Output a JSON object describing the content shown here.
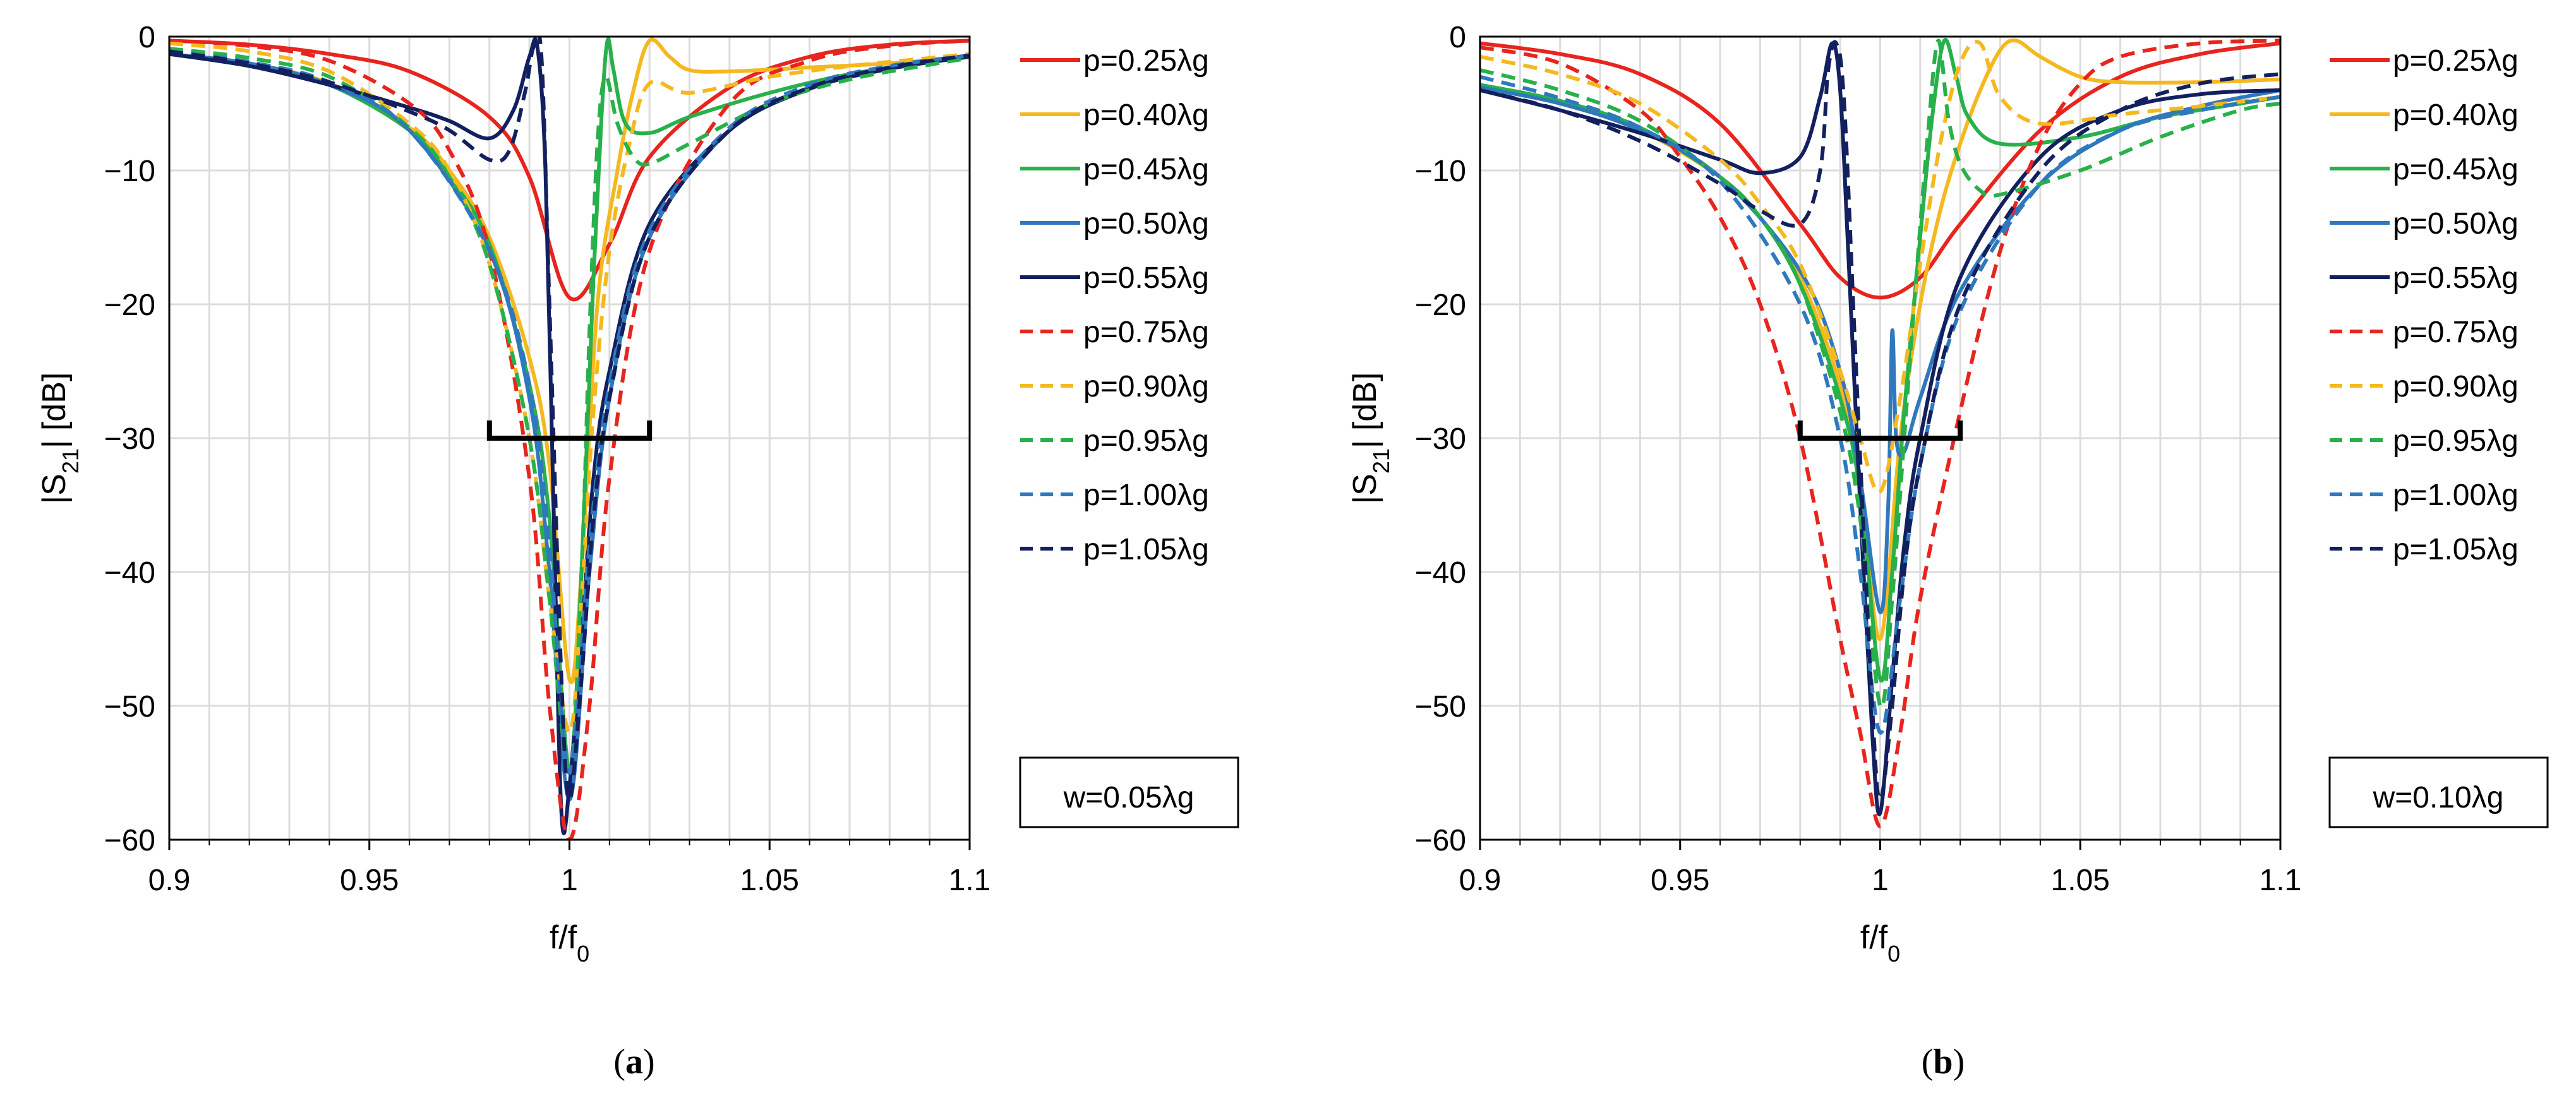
{
  "chart_data": [
    {
      "type": "line",
      "panel": "a",
      "caption_letter": "a",
      "xlabel": "f/f0",
      "ylabel": "|S21| [dB]",
      "xlim": [
        0.9,
        1.1
      ],
      "ylim": [
        -60,
        0
      ],
      "xticks": [
        0.9,
        0.95,
        1,
        1.05,
        1.1
      ],
      "xtick_labels": [
        "0.9",
        "0.95",
        "1",
        "1.05",
        "1.1"
      ],
      "yticks": [
        0,
        -10,
        -20,
        -30,
        -40,
        -50,
        -60
      ],
      "ytick_labels": [
        "0",
        "−10",
        "−20",
        "−30",
        "−40",
        "−50",
        "−60"
      ],
      "grid": true,
      "legend_position": "right",
      "annotation": "w=0.05λg",
      "bracket": {
        "x": [
          0.98,
          1.02
        ],
        "y": -30
      },
      "series": [
        {
          "name": "p=0.25λg",
          "color": "#e8241e",
          "style": "solid",
          "x": [
            0.9,
            0.92,
            0.94,
            0.96,
            0.98,
            0.99,
            1.0,
            1.01,
            1.02,
            1.04,
            1.06,
            1.08,
            1.1
          ],
          "y": [
            -0.3,
            -0.6,
            -1.3,
            -2.6,
            -6.0,
            -10.5,
            -19.5,
            -15.5,
            -9.0,
            -3.8,
            -1.5,
            -0.6,
            -0.3
          ]
        },
        {
          "name": "p=0.40λg",
          "color": "#f5b81e",
          "style": "solid",
          "x": [
            0.9,
            0.92,
            0.94,
            0.96,
            0.97,
            0.98,
            0.99,
            0.995,
            1.0,
            1.003,
            1.007,
            1.012,
            1.016,
            1.02,
            1.025,
            1.03,
            1.04,
            1.06,
            1.08,
            1.1
          ],
          "y": [
            -1.3,
            -2.0,
            -3.5,
            -6.8,
            -10.0,
            -15.0,
            -24.0,
            -32.0,
            -48.0,
            -40.0,
            -20.0,
            -10.0,
            -4.0,
            -0.3,
            -1.5,
            -2.5,
            -2.6,
            -2.3,
            -2.0,
            -1.5
          ]
        },
        {
          "name": "p=0.45λg",
          "color": "#28b04b",
          "style": "solid",
          "x": [
            0.9,
            0.92,
            0.94,
            0.96,
            0.97,
            0.98,
            0.99,
            0.995,
            1.0,
            1.003,
            1.006,
            1.008,
            1.0095,
            1.011,
            1.014,
            1.02,
            1.03,
            1.05,
            1.07,
            1.09,
            1.1
          ],
          "y": [
            -1.3,
            -2.1,
            -3.6,
            -7.0,
            -10.5,
            -15.5,
            -26.0,
            -36.0,
            -55.0,
            -40.0,
            -18.0,
            -6.0,
            -0.3,
            -2.5,
            -6.5,
            -7.2,
            -6.0,
            -4.2,
            -2.8,
            -1.9,
            -1.5
          ]
        },
        {
          "name": "p=0.50λg",
          "color": "#2f78bd",
          "style": "solid",
          "x": [
            0.9,
            0.92,
            0.94,
            0.96,
            0.98,
            0.99,
            0.995,
            1.0,
            1.005,
            1.01,
            1.02,
            1.04,
            1.06,
            1.08,
            1.1
          ],
          "y": [
            -1.3,
            -2.0,
            -3.6,
            -7.0,
            -16.0,
            -27.0,
            -40.0,
            -57.0,
            -40.0,
            -27.0,
            -15.0,
            -7.0,
            -3.8,
            -2.3,
            -1.5
          ]
        },
        {
          "name": "p=0.55λg",
          "color": "#13205f",
          "style": "solid",
          "x": [
            0.9,
            0.92,
            0.94,
            0.96,
            0.97,
            0.98,
            0.986,
            0.99,
            0.992,
            0.994,
            0.996,
            0.998,
            1.0,
            1.003,
            1.006,
            1.01,
            1.02,
            1.04,
            1.06,
            1.08,
            1.1
          ],
          "y": [
            -1.3,
            -2.2,
            -3.6,
            -5.3,
            -6.3,
            -7.6,
            -5.5,
            -1.5,
            -0.8,
            -10.0,
            -35.0,
            -58.0,
            -56.0,
            -45.0,
            -33.0,
            -25.0,
            -14.0,
            -7.0,
            -3.9,
            -2.4,
            -1.5
          ]
        },
        {
          "name": "p=0.75λg",
          "color": "#e8241e",
          "style": "dashed",
          "x": [
            0.9,
            0.92,
            0.94,
            0.96,
            0.97,
            0.98,
            0.99,
            0.995,
            1.0,
            1.005,
            1.01,
            1.02,
            1.04,
            1.06,
            1.08,
            1.1
          ],
          "y": [
            -0.3,
            -0.7,
            -1.8,
            -5.0,
            -8.5,
            -16.0,
            -33.0,
            -50.0,
            -60.0,
            -50.0,
            -33.0,
            -16.0,
            -5.0,
            -1.8,
            -0.7,
            -0.3
          ]
        },
        {
          "name": "p=0.90λg",
          "color": "#f5b81e",
          "style": "dashed",
          "x": [
            0.9,
            0.92,
            0.94,
            0.96,
            0.97,
            0.98,
            0.99,
            0.995,
            1.0,
            1.003,
            1.006,
            1.01,
            1.015,
            1.02,
            1.03,
            1.05,
            1.07,
            1.09,
            1.1
          ],
          "y": [
            -0.5,
            -1.1,
            -2.6,
            -6.5,
            -10.0,
            -17.0,
            -30.0,
            -42.0,
            -52.0,
            -42.0,
            -28.0,
            -16.0,
            -8.0,
            -3.5,
            -4.2,
            -3.0,
            -2.2,
            -1.6,
            -1.3
          ]
        },
        {
          "name": "p=0.95λg",
          "color": "#28b04b",
          "style": "dashed",
          "x": [
            0.9,
            0.92,
            0.94,
            0.96,
            0.97,
            0.98,
            0.99,
            0.995,
            1.0,
            1.003,
            1.005,
            1.007,
            1.009,
            1.012,
            1.016,
            1.02,
            1.03,
            1.05,
            1.07,
            1.09,
            1.1
          ],
          "y": [
            -0.9,
            -1.6,
            -3.0,
            -6.8,
            -10.5,
            -17.0,
            -30.0,
            -42.0,
            -55.0,
            -40.0,
            -22.0,
            -8.0,
            -3.0,
            -6.5,
            -9.0,
            -9.5,
            -8.0,
            -5.0,
            -3.2,
            -2.1,
            -1.6
          ]
        },
        {
          "name": "p=1.00λg",
          "color": "#2f78bd",
          "style": "dashed",
          "x": [
            0.9,
            0.92,
            0.94,
            0.96,
            0.98,
            0.99,
            0.995,
            1.0,
            1.005,
            1.01,
            1.02,
            1.04,
            1.06,
            1.08,
            1.1
          ],
          "y": [
            -1.1,
            -1.9,
            -3.4,
            -7.0,
            -16.0,
            -26.0,
            -38.0,
            -55.0,
            -38.0,
            -26.0,
            -14.5,
            -6.8,
            -3.6,
            -2.2,
            -1.4
          ]
        },
        {
          "name": "p=1.05λg",
          "color": "#13205f",
          "style": "dashed",
          "x": [
            0.9,
            0.92,
            0.94,
            0.96,
            0.97,
            0.98,
            0.985,
            0.989,
            0.991,
            0.993,
            0.995,
            0.998,
            1.0,
            1.003,
            1.006,
            1.01,
            1.02,
            1.04,
            1.06,
            1.08,
            1.1
          ],
          "y": [
            -1.1,
            -2.0,
            -3.4,
            -5.6,
            -7.0,
            -9.2,
            -8.5,
            -4.0,
            -0.8,
            -1.5,
            -20.0,
            -48.0,
            -57.0,
            -48.0,
            -36.0,
            -27.0,
            -15.0,
            -7.0,
            -3.8,
            -2.3,
            -1.4
          ]
        }
      ]
    },
    {
      "type": "line",
      "panel": "b",
      "caption_letter": "b",
      "xlabel": "f/f0",
      "ylabel": "|S21| [dB]",
      "xlim": [
        0.9,
        1.1
      ],
      "ylim": [
        -60,
        0
      ],
      "xticks": [
        0.9,
        0.95,
        1,
        1.05,
        1.1
      ],
      "xtick_labels": [
        "0.9",
        "0.95",
        "1",
        "1.05",
        "1.1"
      ],
      "yticks": [
        0,
        -10,
        -20,
        -30,
        -40,
        -50,
        -60
      ],
      "ytick_labels": [
        "0",
        "−10",
        "−20",
        "−30",
        "−40",
        "−50",
        "−60"
      ],
      "grid": true,
      "legend_position": "right",
      "annotation": "w=0.10λg",
      "bracket": {
        "x": [
          0.98,
          1.02
        ],
        "y": -30
      },
      "series": [
        {
          "name": "p=0.25λg",
          "color": "#e8241e",
          "style": "solid",
          "x": [
            0.9,
            0.92,
            0.94,
            0.96,
            0.98,
            0.99,
            1.0,
            1.01,
            1.02,
            1.04,
            1.06,
            1.08,
            1.1
          ],
          "y": [
            -0.5,
            -1.3,
            -2.8,
            -6.5,
            -14.0,
            -18.0,
            -19.5,
            -18.0,
            -14.0,
            -7.0,
            -3.0,
            -1.3,
            -0.5
          ]
        },
        {
          "name": "p=0.40λg",
          "color": "#f5b81e",
          "style": "solid",
          "x": [
            0.9,
            0.92,
            0.94,
            0.96,
            0.97,
            0.98,
            0.99,
            0.995,
            1.0,
            1.005,
            1.01,
            1.015,
            1.02,
            1.025,
            1.03,
            1.034,
            1.04,
            1.05,
            1.06,
            1.08,
            1.1
          ],
          "y": [
            -3.8,
            -5.0,
            -7.0,
            -10.5,
            -13.5,
            -18.0,
            -26.0,
            -33.0,
            -45.0,
            -30.0,
            -20.0,
            -13.0,
            -8.0,
            -4.0,
            -1.0,
            -0.3,
            -1.5,
            -3.0,
            -3.4,
            -3.4,
            -3.2
          ]
        },
        {
          "name": "p=0.45λg",
          "color": "#28b04b",
          "style": "solid",
          "x": [
            0.9,
            0.92,
            0.94,
            0.96,
            0.97,
            0.98,
            0.99,
            0.995,
            1.0,
            1.003,
            1.006,
            1.01,
            1.013,
            1.016,
            1.019,
            1.022,
            1.03,
            1.05,
            1.07,
            1.09,
            1.1
          ],
          "y": [
            -3.6,
            -4.8,
            -6.8,
            -10.5,
            -13.5,
            -18.5,
            -27.0,
            -34.0,
            -48.0,
            -40.0,
            -28.0,
            -15.0,
            -6.0,
            -0.3,
            -3.0,
            -6.0,
            -8.0,
            -7.5,
            -6.0,
            -5.0,
            -4.5
          ]
        },
        {
          "name": "p=0.50λg",
          "color": "#2f78bd",
          "style": "solid",
          "x": [
            0.9,
            0.92,
            0.94,
            0.96,
            0.98,
            0.99,
            0.995,
            1.0,
            1.002,
            1.003,
            1.004,
            1.006,
            1.01,
            1.02,
            1.04,
            1.06,
            1.08,
            1.1
          ],
          "y": [
            -3.8,
            -5.0,
            -7.0,
            -10.5,
            -17.5,
            -25.0,
            -33.0,
            -43.0,
            -35.0,
            -22.0,
            -30.0,
            -31.0,
            -27.0,
            -19.0,
            -11.0,
            -7.0,
            -5.2,
            -4.0
          ]
        },
        {
          "name": "p=0.55λg",
          "color": "#13205f",
          "style": "solid",
          "x": [
            0.9,
            0.92,
            0.94,
            0.96,
            0.97,
            0.98,
            0.985,
            0.988,
            0.99,
            0.992,
            0.995,
            0.998,
            1.0,
            1.003,
            1.006,
            1.01,
            1.02,
            1.04,
            1.06,
            1.08,
            1.1
          ],
          "y": [
            -4.0,
            -5.5,
            -7.2,
            -9.2,
            -10.2,
            -9.0,
            -4.5,
            -0.5,
            -4.0,
            -16.0,
            -35.0,
            -52.0,
            -58.0,
            -48.0,
            -38.0,
            -30.0,
            -18.0,
            -9.0,
            -5.5,
            -4.3,
            -4.0
          ]
        },
        {
          "name": "p=0.75λg",
          "color": "#e8241e",
          "style": "dashed",
          "x": [
            0.9,
            0.92,
            0.94,
            0.95,
            0.96,
            0.97,
            0.98,
            0.99,
            0.995,
            1.0,
            1.005,
            1.01,
            1.02,
            1.03,
            1.04,
            1.05,
            1.06,
            1.08,
            1.1
          ],
          "y": [
            -0.8,
            -2.0,
            -5.5,
            -9.0,
            -13.5,
            -20.0,
            -30.0,
            -45.0,
            -52.0,
            -59.0,
            -52.0,
            -42.0,
            -28.0,
            -16.0,
            -8.0,
            -3.5,
            -1.5,
            -0.5,
            -0.3
          ]
        },
        {
          "name": "p=0.90λg",
          "color": "#f5b81e",
          "style": "dashed",
          "x": [
            0.9,
            0.92,
            0.94,
            0.96,
            0.97,
            0.98,
            0.99,
            0.995,
            1.0,
            1.005,
            1.01,
            1.015,
            1.02,
            1.025,
            1.03,
            1.04,
            1.06,
            1.08,
            1.1
          ],
          "y": [
            -1.5,
            -2.8,
            -5.0,
            -9.2,
            -12.5,
            -17.0,
            -25.0,
            -30.0,
            -34.0,
            -27.0,
            -17.0,
            -8.0,
            -2.0,
            -0.5,
            -4.5,
            -6.5,
            -5.8,
            -5.2,
            -4.5
          ]
        },
        {
          "name": "p=0.95λg",
          "color": "#28b04b",
          "style": "dashed",
          "x": [
            0.9,
            0.92,
            0.94,
            0.96,
            0.97,
            0.98,
            0.99,
            0.995,
            1.0,
            1.003,
            1.006,
            1.009,
            1.012,
            1.0145,
            1.017,
            1.02,
            1.025,
            1.03,
            1.05,
            1.07,
            1.09,
            1.1
          ],
          "y": [
            -2.5,
            -4.0,
            -6.3,
            -10.5,
            -13.5,
            -18.5,
            -28.0,
            -36.0,
            -50.0,
            -42.0,
            -30.0,
            -18.0,
            -7.0,
            -0.3,
            -6.0,
            -9.5,
            -11.5,
            -11.8,
            -10.0,
            -7.5,
            -5.5,
            -5.0
          ]
        },
        {
          "name": "p=1.00λg",
          "color": "#2f78bd",
          "style": "dashed",
          "x": [
            0.9,
            0.92,
            0.94,
            0.96,
            0.98,
            0.99,
            0.995,
            1.0,
            1.005,
            1.01,
            1.02,
            1.04,
            1.06,
            1.08,
            1.1
          ],
          "y": [
            -3.0,
            -4.6,
            -6.8,
            -10.8,
            -20.0,
            -30.0,
            -40.0,
            -52.0,
            -42.0,
            -32.0,
            -20.5,
            -11.0,
            -7.0,
            -5.5,
            -4.5
          ]
        },
        {
          "name": "p=1.05λg",
          "color": "#13205f",
          "style": "dashed",
          "x": [
            0.9,
            0.92,
            0.94,
            0.96,
            0.97,
            0.98,
            0.985,
            0.987,
            0.989,
            0.991,
            0.994,
            0.998,
            1.0,
            1.003,
            1.006,
            1.01,
            1.02,
            1.04,
            1.06,
            1.08,
            1.1
          ],
          "y": [
            -4.0,
            -5.5,
            -7.8,
            -11.0,
            -13.0,
            -14.0,
            -10.0,
            -2.5,
            -0.5,
            -5.0,
            -25.0,
            -50.0,
            -57.0,
            -50.0,
            -40.0,
            -32.0,
            -20.0,
            -10.0,
            -5.5,
            -3.5,
            -2.8
          ]
        }
      ]
    }
  ]
}
